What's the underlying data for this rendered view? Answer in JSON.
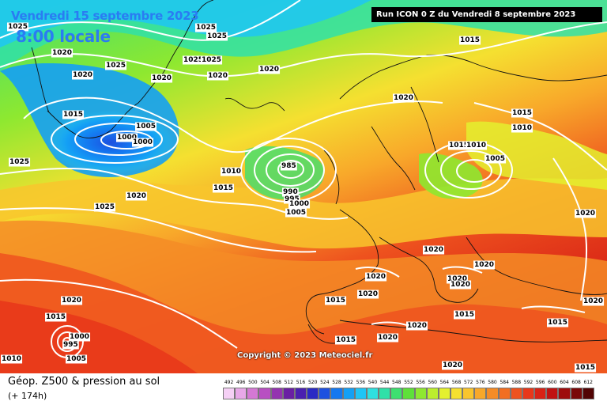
{
  "map": {
    "date_label": "Vendredi 15 septembre 2023",
    "time_label": "8:00 locale",
    "run_label": "Run ICON 0 Z du Vendredi 8 septembre 2023",
    "copyright": "Copyright © 2023 Meteociel.fr",
    "pressure_labels": [
      {
        "text": "1025"
      },
      {
        "text": "1020"
      },
      {
        "text": "1025"
      },
      {
        "text": "1025"
      },
      {
        "text": "1025"
      },
      {
        "text": "1025"
      },
      {
        "text": "1025"
      },
      {
        "text": "1020"
      },
      {
        "text": "1020"
      },
      {
        "text": "1020"
      },
      {
        "text": "1020"
      },
      {
        "text": "1015"
      },
      {
        "text": "1010"
      },
      {
        "text": "1015"
      },
      {
        "text": "1020"
      },
      {
        "text": "1015"
      },
      {
        "text": "1005"
      },
      {
        "text": "1000"
      },
      {
        "text": "1000"
      },
      {
        "text": "1025"
      },
      {
        "text": "1020"
      },
      {
        "text": "1025"
      },
      {
        "text": "1010"
      },
      {
        "text": "1015"
      },
      {
        "text": "985"
      },
      {
        "text": "990"
      },
      {
        "text": "995"
      },
      {
        "text": "1000"
      },
      {
        "text": "1005"
      },
      {
        "text": "1015"
      },
      {
        "text": "1010"
      },
      {
        "text": "1005"
      },
      {
        "text": "1020"
      },
      {
        "text": "1020"
      },
      {
        "text": "1020"
      },
      {
        "text": "1020"
      },
      {
        "text": "1020"
      },
      {
        "text": "1020"
      },
      {
        "text": "1015"
      },
      {
        "text": "1020"
      },
      {
        "text": "1015"
      },
      {
        "text": "1020"
      },
      {
        "text": "1020"
      },
      {
        "text": "1015"
      },
      {
        "text": "1020"
      },
      {
        "text": "1020"
      },
      {
        "text": "1015"
      },
      {
        "text": "1020"
      },
      {
        "text": "1015"
      },
      {
        "text": "1000"
      },
      {
        "text": "995"
      },
      {
        "text": "1005"
      },
      {
        "text": "1010"
      },
      {
        "text": "1015"
      }
    ]
  },
  "legend": {
    "title": "Géop. Z500 & pression au sol",
    "subtitle": "(+ 174h)",
    "scale_values": [
      "492",
      "496",
      "500",
      "504",
      "508",
      "512",
      "516",
      "520",
      "524",
      "528",
      "532",
      "536",
      "540",
      "544",
      "548",
      "552",
      "556",
      "560",
      "564",
      "568",
      "572",
      "576",
      "580",
      "584",
      "588",
      "592",
      "596",
      "600",
      "604",
      "608",
      "612"
    ],
    "scale_colors": [
      "#f5d0f5",
      "#e8a8e8",
      "#d478d4",
      "#b84fc2",
      "#9434b0",
      "#6a1fa3",
      "#4a20b0",
      "#2a2ac4",
      "#1d50e0",
      "#1478f0",
      "#14a0f5",
      "#1fc5f5",
      "#2fe0e0",
      "#30e0a8",
      "#3ee070",
      "#5ee03a",
      "#8ee830",
      "#bcee2e",
      "#e4f02e",
      "#f5e030",
      "#f8c52d",
      "#f8a82a",
      "#f58c26",
      "#f26f22",
      "#ee521e",
      "#e8371a",
      "#d82216",
      "#c01212",
      "#9e0c0c",
      "#7a0707",
      "#520303"
    ]
  }
}
